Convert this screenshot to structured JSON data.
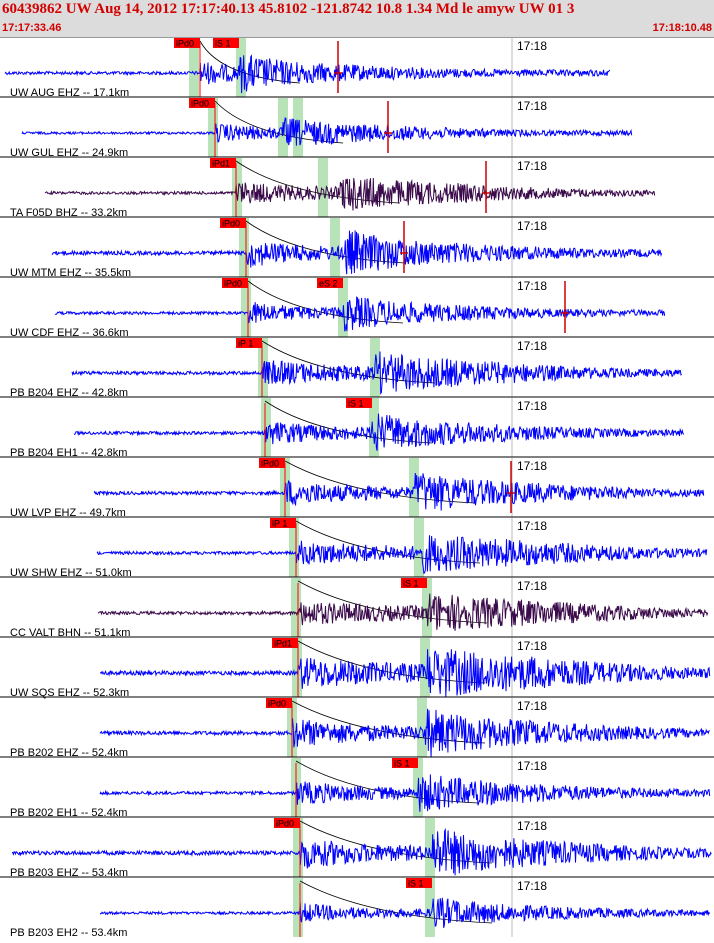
{
  "header": {
    "title": "60439862 UW Aug 14, 2012 17:17:40.13    45.8102 -121.8742 10.8 1.34 Md le amyw UW 01   3",
    "start_time": "17:17:33.46",
    "end_time": "17:18:10.48",
    "colors": {
      "header_text": "#d40000",
      "header_bg": "#dcdcdc"
    }
  },
  "traces": [
    {
      "station": "UW AUG EHZ -- 17.1km",
      "time_label": "17:18",
      "color": "#0000ff",
      "p": 200,
      "s": 240,
      "tags": [
        {
          "label": "iPd0",
          "x": 198
        },
        {
          "label": "iS 1",
          "x": 237
        }
      ],
      "hl": [
        194,
        241
      ],
      "start": 5,
      "end": 610,
      "amp": 13,
      "decay": 0.93,
      "extra_markers": [
        338
      ]
    },
    {
      "station": "UW GUL EHZ -- 24.9km",
      "time_label": "17:18",
      "color": "#0000ff",
      "p": 215,
      "s": 283,
      "tags": [
        {
          "label": "iPd0",
          "x": 213
        }
      ],
      "hl": [
        213,
        283,
        298
      ],
      "start": 22,
      "end": 632,
      "amp": 10,
      "decay": 0.95,
      "extra_markers": [
        388
      ]
    },
    {
      "station": "TA F05D BHZ -- 33.2km",
      "time_label": "17:18",
      "color": "#3a0a4a",
      "p": 236,
      "s": 340,
      "tags": [
        {
          "label": "iPd1",
          "x": 234
        }
      ],
      "hl": [
        237,
        323
      ],
      "start": 45,
      "end": 655,
      "amp": 12,
      "decay": 0.96,
      "extra_markers": [
        486
      ]
    },
    {
      "station": "UW MTM EHZ -- 35.5km",
      "time_label": "17:18",
      "color": "#0000ff",
      "p": 246,
      "s": 345,
      "tags": [
        {
          "label": "iPd0",
          "x": 244
        }
      ],
      "hl": [
        244,
        335
      ],
      "start": 52,
      "end": 662,
      "amp": 16,
      "decay": 0.93,
      "extra_markers": [
        404
      ]
    },
    {
      "station": "UW CDF EHZ -- 36.6km",
      "time_label": "17:18",
      "color": "#0000ff",
      "p": 248,
      "s": 343,
      "tags": [
        {
          "label": "iPd0",
          "x": 246
        },
        {
          "label": "eS 2",
          "x": 341
        }
      ],
      "hl": [
        246,
        343
      ],
      "start": 55,
      "end": 665,
      "amp": 12,
      "decay": 0.94,
      "extra_markers": [
        565
      ]
    },
    {
      "station": "PB B204 EHZ -- 42.8km",
      "time_label": "17:18",
      "color": "#0000ff",
      "p": 262,
      "s": 375,
      "tags": [
        {
          "label": "iP 1",
          "x": 260
        }
      ],
      "hl": [
        263,
        375
      ],
      "start": 72,
      "end": 682,
      "amp": 14,
      "decay": 0.96,
      "extra_markers": []
    },
    {
      "station": "PB B204 EH1 -- 42.8km",
      "time_label": "17:18",
      "color": "#0000ff",
      "p": 265,
      "s": 372,
      "tags": [
        {
          "label": "iS 1",
          "x": 370
        }
      ],
      "hl": [
        266,
        374
      ],
      "start": 74,
      "end": 684,
      "amp": 13,
      "decay": 0.95,
      "extra_markers": []
    },
    {
      "station": "UW LVP EHZ -- 49.7km",
      "time_label": "17:18",
      "color": "#0000ff",
      "p": 285,
      "s": 415,
      "tags": [
        {
          "label": "iPd0",
          "x": 283
        }
      ],
      "hl": [
        285,
        414
      ],
      "start": 94,
      "end": 704,
      "amp": 14,
      "decay": 0.95,
      "extra_markers": [
        511
      ]
    },
    {
      "station": "UW SHW EHZ -- 51.0km",
      "time_label": "17:18",
      "color": "#0000ff",
      "p": 296,
      "s": 420,
      "tags": [
        {
          "label": "iP 1",
          "x": 294
        }
      ],
      "hl": [
        294,
        419
      ],
      "start": 97,
      "end": 707,
      "amp": 13,
      "decay": 0.97,
      "extra_markers": []
    },
    {
      "station": "CC VALT BHN -- 51.1km",
      "time_label": "17:18",
      "color": "#3a0a4a",
      "p": 298,
      "s": 427,
      "tags": [
        {
          "label": "iS 1",
          "x": 425
        }
      ],
      "hl": [
        296,
        427
      ],
      "start": 98,
      "end": 708,
      "amp": 13,
      "decay": 0.97,
      "extra_markers": []
    },
    {
      "station": "UW SQS EHZ -- 52.3km",
      "time_label": "17:18",
      "color": "#0000ff",
      "p": 298,
      "s": 425,
      "tags": [
        {
          "label": "iPd1",
          "x": 296
        }
      ],
      "hl": [
        297,
        425
      ],
      "start": 100,
      "end": 710,
      "amp": 17,
      "decay": 0.97,
      "extra_markers": []
    },
    {
      "station": "PB B202 EHZ -- 52.4km",
      "time_label": "17:18",
      "color": "#0000ff",
      "p": 292,
      "s": 425,
      "tags": [
        {
          "label": "iPd0",
          "x": 290
        }
      ],
      "hl": [
        292,
        422
      ],
      "start": 100,
      "end": 710,
      "amp": 16,
      "decay": 0.95,
      "extra_markers": []
    },
    {
      "station": "PB B202 EH1 -- 52.4km",
      "time_label": "17:18",
      "color": "#0000ff",
      "p": 296,
      "s": 418,
      "tags": [
        {
          "label": "iS 1",
          "x": 416
        }
      ],
      "hl": [
        296,
        418
      ],
      "start": 100,
      "end": 710,
      "amp": 13,
      "decay": 0.95,
      "extra_markers": []
    },
    {
      "station": "PB B203 EHZ -- 53.4km",
      "time_label": "17:18",
      "color": "#0000ff",
      "p": 300,
      "s": 432,
      "tags": [
        {
          "label": "iPd0",
          "x": 298
        }
      ],
      "hl": [
        298,
        430
      ],
      "start": 12,
      "end": 712,
      "amp": 17,
      "decay": 0.95,
      "extra_markers": []
    },
    {
      "station": "PB B203 EH2 -- 53.4km",
      "time_label": "17:18",
      "color": "#0000ff",
      "p": 300,
      "s": 432,
      "tags": [
        {
          "label": "iS 1",
          "x": 430
        }
      ],
      "hl": [
        298,
        430
      ],
      "start": 100,
      "end": 710,
      "amp": 11,
      "decay": 0.93,
      "extra_markers": []
    }
  ]
}
